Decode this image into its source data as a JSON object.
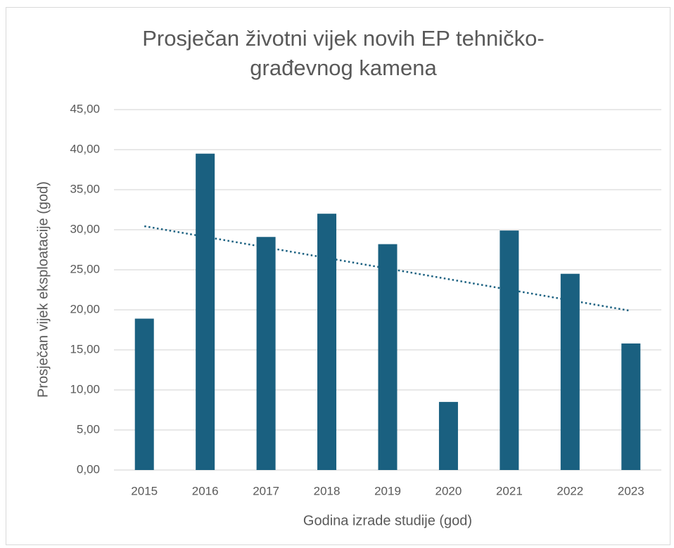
{
  "chart_data": {
    "type": "bar",
    "title": "Prosječan životni vijek novih EP tehničko-građevnog kamena",
    "x_label": "Godina izrade studije (god)",
    "y_label": "Prosječan vijek eksploatacije (god)",
    "categories": [
      "2015",
      "2016",
      "2017",
      "2018",
      "2019",
      "2020",
      "2021",
      "2022",
      "2023"
    ],
    "values": [
      18.9,
      39.5,
      29.1,
      32.0,
      28.2,
      8.5,
      29.9,
      24.5,
      15.8
    ],
    "color": "#1a6080",
    "ylim": [
      0,
      45
    ],
    "yticks": [
      {
        "value": 0,
        "label": "0,00"
      },
      {
        "value": 5,
        "label": "5,00"
      },
      {
        "value": 10,
        "label": "10,00"
      },
      {
        "value": 15,
        "label": "15,00"
      },
      {
        "value": 20,
        "label": "20,00"
      },
      {
        "value": 25,
        "label": "25,00"
      },
      {
        "value": 30,
        "label": "30,00"
      },
      {
        "value": 35,
        "label": "35,00"
      },
      {
        "value": 40,
        "label": "40,00"
      },
      {
        "value": 45,
        "label": "45,00"
      }
    ],
    "grid": true,
    "trendline": {
      "type": "linear",
      "color": "#1a6080",
      "style": "dotted"
    }
  }
}
